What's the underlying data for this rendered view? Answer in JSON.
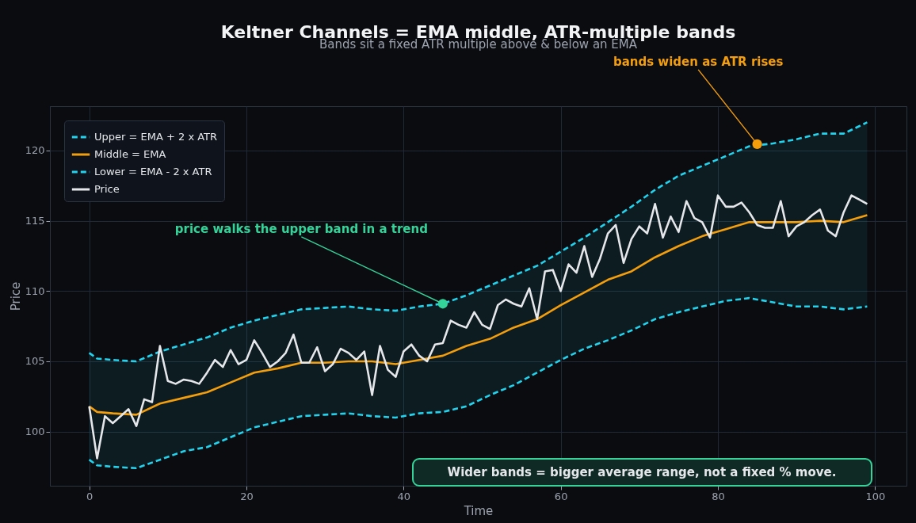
{
  "chart_data": {
    "type": "line",
    "title": "Keltner Channels = EMA middle, ATR-multiple bands",
    "subtitle": "Bands sit a fixed ATR multiple above & below an EMA",
    "xlabel": "Time",
    "ylabel": "Price",
    "xlim": [
      -5,
      104
    ],
    "ylim": [
      96.15,
      123.15
    ],
    "xticks": [
      0,
      20,
      40,
      60,
      80,
      100
    ],
    "yticks": [
      100,
      105,
      110,
      115,
      120
    ],
    "grid": true,
    "legend": "top left",
    "marker": "none",
    "series": [
      {
        "name": "Upper = EMA + 2 x ATR",
        "color": "#22d3ee",
        "line_style": "dashed",
        "x": [
          0,
          1,
          3,
          6,
          9,
          12,
          15,
          18,
          21,
          24,
          27,
          30,
          33,
          36,
          39,
          42,
          45,
          48,
          51,
          54,
          57,
          60,
          63,
          66,
          69,
          72,
          75,
          78,
          81,
          84,
          87,
          90,
          93,
          96,
          99
        ],
        "values": [
          105.6,
          105.2,
          105.1,
          105.0,
          105.7,
          106.2,
          106.7,
          107.4,
          107.9,
          108.3,
          108.7,
          108.8,
          108.9,
          108.7,
          108.6,
          108.9,
          109.1,
          109.7,
          110.4,
          111.1,
          111.8,
          112.8,
          113.8,
          114.9,
          116.0,
          117.2,
          118.2,
          118.9,
          119.6,
          120.3,
          120.5,
          120.8,
          121.2,
          121.2,
          122.0
        ]
      },
      {
        "name": "Middle = EMA",
        "color": "#f59e0b",
        "line_style": "solid",
        "x": [
          0,
          1,
          3,
          6,
          9,
          12,
          15,
          18,
          21,
          24,
          27,
          30,
          33,
          36,
          39,
          42,
          45,
          48,
          51,
          54,
          57,
          60,
          63,
          66,
          69,
          72,
          75,
          78,
          81,
          84,
          87,
          90,
          93,
          96,
          99
        ],
        "values": [
          101.8,
          101.4,
          101.3,
          101.2,
          102.0,
          102.4,
          102.8,
          103.5,
          104.2,
          104.5,
          104.9,
          104.9,
          105.0,
          105.0,
          104.8,
          105.1,
          105.4,
          106.1,
          106.6,
          107.4,
          108.0,
          109.0,
          109.9,
          110.8,
          111.4,
          112.4,
          113.2,
          113.9,
          114.4,
          114.9,
          114.9,
          114.9,
          115.0,
          114.9,
          115.4
        ],
        "upper": [
          105.6,
          105.2,
          105.1,
          105.0,
          105.7,
          106.2,
          106.7,
          107.4,
          107.9,
          108.3,
          108.7,
          108.8,
          108.9,
          108.7,
          108.6,
          108.9,
          109.1,
          109.7,
          110.4,
          111.1,
          111.8,
          112.8,
          113.8,
          114.9,
          116.0,
          117.2,
          118.2,
          118.9,
          119.6,
          120.3,
          120.5,
          120.8,
          121.2,
          121.2,
          122.0
        ],
        "lower": [
          98.0,
          97.6,
          97.5,
          97.4,
          98.0,
          98.6,
          98.9,
          99.6,
          100.3,
          100.7,
          101.1,
          101.2,
          101.3,
          101.1,
          101.0,
          101.3,
          101.4,
          101.8,
          102.6,
          103.3,
          104.2,
          105.1,
          105.9,
          106.5,
          107.2,
          108.0,
          108.5,
          108.9,
          109.3,
          109.5,
          109.2,
          108.9,
          108.9,
          108.7,
          108.9
        ]
      },
      {
        "name": "Lower = EMA - 2 x ATR",
        "color": "#22d3ee",
        "line_style": "dashed",
        "x": [
          0,
          1,
          3,
          6,
          9,
          12,
          15,
          18,
          21,
          24,
          27,
          30,
          33,
          36,
          39,
          42,
          45,
          48,
          51,
          54,
          57,
          60,
          63,
          66,
          69,
          72,
          75,
          78,
          81,
          84,
          87,
          90,
          93,
          96,
          99
        ],
        "values": [
          98.0,
          97.6,
          97.5,
          97.4,
          98.0,
          98.6,
          98.9,
          99.6,
          100.3,
          100.7,
          101.1,
          101.2,
          101.3,
          101.1,
          101.0,
          101.3,
          101.4,
          101.8,
          102.6,
          103.3,
          104.2,
          105.1,
          105.9,
          106.5,
          107.2,
          108.0,
          108.5,
          108.9,
          109.3,
          109.5,
          109.2,
          108.9,
          108.9,
          108.7,
          108.9
        ]
      },
      {
        "name": "Price",
        "color": "#e5e7eb",
        "line_style": "solid",
        "x": [
          0,
          1,
          2,
          3,
          4,
          5,
          6,
          7,
          8,
          9,
          10,
          11,
          12,
          13,
          14,
          15,
          16,
          17,
          18,
          19,
          20,
          21,
          22,
          23,
          24,
          25,
          26,
          27,
          28,
          29,
          30,
          31,
          32,
          33,
          34,
          35,
          36,
          37,
          38,
          39,
          40,
          41,
          42,
          43,
          44,
          45,
          46,
          47,
          48,
          49,
          50,
          51,
          52,
          53,
          54,
          55,
          56,
          57,
          58,
          59,
          60,
          61,
          62,
          63,
          64,
          65,
          66,
          67,
          68,
          69,
          70,
          71,
          72,
          73,
          74,
          75,
          76,
          77,
          78,
          79,
          80,
          81,
          82,
          83,
          84,
          85,
          86,
          87,
          88,
          89,
          90,
          91,
          92,
          93,
          94,
          95,
          96,
          97,
          98,
          99
        ],
        "values": [
          101.8,
          98.1,
          101.1,
          100.6,
          101.1,
          101.6,
          100.4,
          102.3,
          102.1,
          106.1,
          103.6,
          103.4,
          103.7,
          103.6,
          103.4,
          104.2,
          105.1,
          104.6,
          105.8,
          104.8,
          105.1,
          106.5,
          105.6,
          104.6,
          105.0,
          105.6,
          106.9,
          104.9,
          104.9,
          106.0,
          104.3,
          104.8,
          105.9,
          105.6,
          105.1,
          105.7,
          102.6,
          106.1,
          104.4,
          103.9,
          105.7,
          106.2,
          105.4,
          105.0,
          106.2,
          106.3,
          107.9,
          107.6,
          107.4,
          108.5,
          107.6,
          107.3,
          109.0,
          109.4,
          109.1,
          108.9,
          110.2,
          108.0,
          111.4,
          111.5,
          110.0,
          111.9,
          111.3,
          113.2,
          111.0,
          112.3,
          114.1,
          114.7,
          112.0,
          113.7,
          114.6,
          114.1,
          116.2,
          113.8,
          115.3,
          114.2,
          116.4,
          115.2,
          114.9,
          113.8,
          116.8,
          116.0,
          116.0,
          116.3,
          115.6,
          114.7,
          114.5,
          114.5,
          116.4,
          113.9,
          114.6,
          114.9,
          115.4,
          115.8,
          114.3,
          113.9,
          115.6,
          116.8,
          116.5,
          116.2
        ]
      }
    ],
    "annotations": [
      {
        "text": "price walks the upper band in a trend",
        "x": 45,
        "y": 109.1
      },
      {
        "text": "bands widen as ATR rises",
        "x": 85,
        "y": 120.45
      },
      "Wider bands = bigger average range, not a fixed % move."
    ]
  }
}
